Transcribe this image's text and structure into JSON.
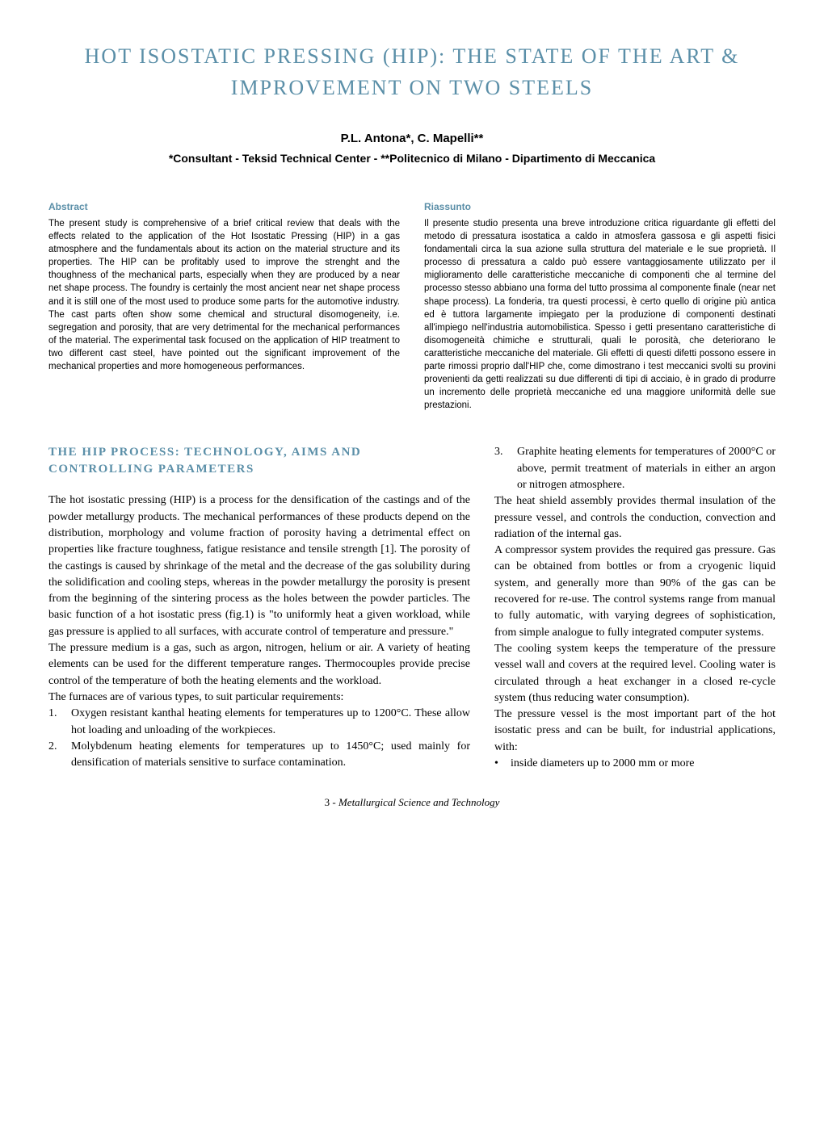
{
  "title": "Hot Isostatic Pressing (HIP): the State of the Art & Improvement on Two Steels",
  "authors": "P.L. Antona*, C. Mapelli**",
  "affiliation": "*Consultant - Teksid Technical Center - **Politecnico di Milano - Dipartimento di Meccanica",
  "abstract": {
    "heading": "Abstract",
    "body": "The present study is comprehensive of a brief critical review that deals with the effects related to the application of the Hot Isostatic Pressing (HIP) in a gas atmosphere and the fundamentals about its action on the material structure and its properties. The HIP can be profitably used to improve the strenght and the thoughness of the mechanical parts, especially when they are produced by a near net shape process. The foundry is certainly the most ancient near net shape process and it is still one of the most used to produce some parts for the automotive industry. The cast parts often show some chemical and structural disomogeneity, i.e. segregation and porosity, that are very detrimental for the mechanical performances of the material. The experimental task focused on the application of HIP treatment to two different cast steel, have pointed out the significant improvement of the mechanical properties and more homogeneous performances."
  },
  "riassunto": {
    "heading": "Riassunto",
    "body": "Il presente studio presenta una breve introduzione critica riguardante gli effetti del metodo di pressatura isostatica a caldo in atmosfera gassosa e gli aspetti fisici fondamentali circa la sua azione sulla struttura del materiale e le sue proprietà. Il processo di pressatura a caldo può essere vantaggiosamente utilizzato per il miglioramento delle caratteristiche meccaniche di componenti che al termine del processo stesso abbiano una forma del tutto prossima al componente finale (near net shape process). La fonderia, tra questi processi, è certo quello di origine più antica ed è tuttora largamente impiegato per la produzione di componenti destinati all'impiego nell'industria automobilistica. Spesso i getti presentano caratteristiche di disomogeneità chimiche e strutturali, quali le porosità, che deteriorano le caratteristiche meccaniche del materiale. Gli effetti di questi difetti possono essere in parte rimossi proprio dall'HIP che, come dimostrano i test meccanici svolti su provini provenienti da getti realizzati su due differenti di tipi di acciaio, è in grado di produrre un incremento delle proprietà meccaniche ed una maggiore uniformità delle sue prestazioni."
  },
  "section1": {
    "heading": "THE HIP PROCESS: TECHNOLOGY, AIMS AND CONTROLLING PARAMETERS",
    "para1": "The hot isostatic pressing (HIP) is a process for the densification of the castings and of the powder metallurgy products. The mechanical performances of these products depend on the distribution, morphology and volume fraction of porosity having a detrimental effect on properties like fracture toughness, fatigue resistance and tensile strength [1]. The porosity of the castings is caused by shrinkage of the metal and the decrease of the gas solubility during the solidification and cooling steps, whereas in the powder metallurgy the porosity is present from the beginning of the sintering process as the holes between the powder particles. The basic function of a hot isostatic press (fig.1) is \"to uniformly heat a given workload, while gas pressure is applied to all surfaces, with accurate control of temperature and pressure.\"",
    "para2": "The pressure medium is a gas, such as argon, nitrogen, helium or air. A variety of heating elements can be used for the different temperature ranges. Thermocouples provide precise control of the temperature of both the heating elements and the workload.",
    "para3": "The furnaces are of various types, to suit particular requirements:",
    "list1": [
      {
        "num": "1.",
        "text": "Oxygen resistant kanthal heating elements for temperatures up to 1200°C. These allow hot loading and unloading of the workpieces."
      },
      {
        "num": "2.",
        "text": "Molybdenum heating elements for temperatures up to 1450°C; used mainly for densification of materials sensitive to surface contamination."
      },
      {
        "num": "3.",
        "text": "Graphite heating elements for temperatures of 2000°C or above, permit treatment of materials in either an argon or nitrogen atmosphere."
      }
    ],
    "para4": "The heat shield assembly provides thermal insulation of the pressure vessel, and controls the conduction, convection and radiation of the internal gas.",
    "para5": "A compressor system provides the required gas pressure. Gas can be obtained from bottles or from a cryogenic liquid system, and generally more than 90% of the gas can be recovered for re-use. The control systems range from manual to fully automatic, with varying degrees of sophistication, from simple analogue to fully integrated computer systems.",
    "para6": "The cooling system keeps the temperature of the pressure vessel wall and covers at the required level. Cooling water is circulated through a heat exchanger in a closed re-cycle system (thus reducing water consumption).",
    "para7": "The pressure vessel is the most important part of the hot isostatic press and can be built, for industrial applications, with:",
    "bullet1": "inside diameters up to 2000 mm or more"
  },
  "footer": {
    "page": "3",
    "sep": " - ",
    "journal": "Metallurgical Science and Technology"
  },
  "colors": {
    "accent": "#5b8fa8",
    "text": "#000000",
    "background": "#ffffff"
  }
}
